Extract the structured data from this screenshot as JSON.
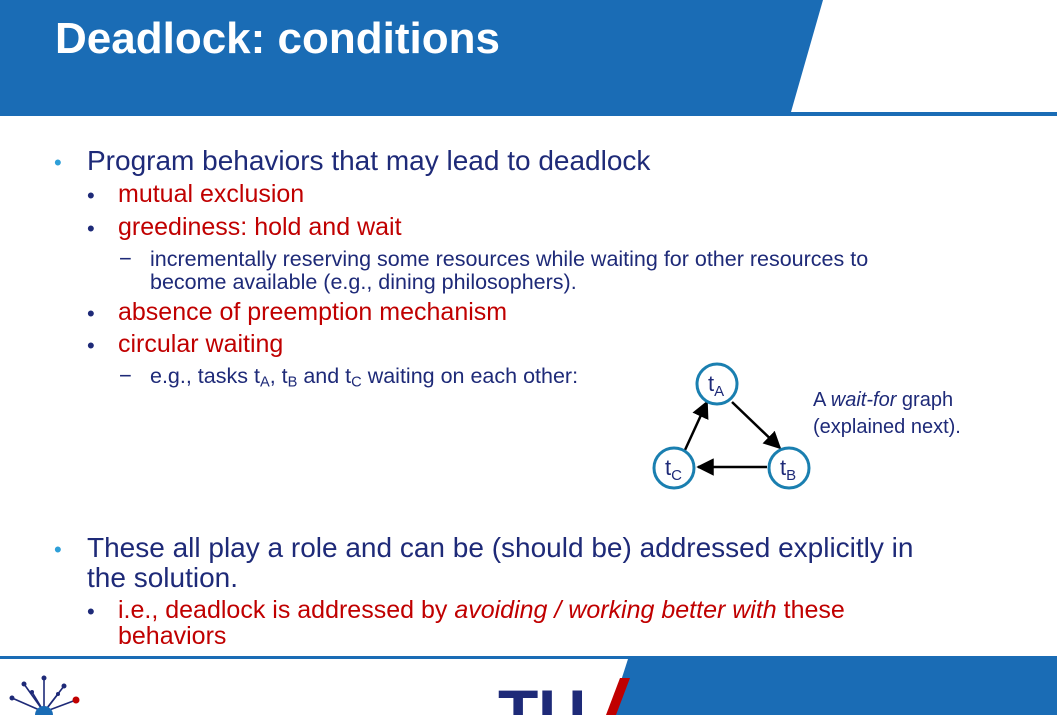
{
  "slide": {
    "title": "Deadlock: conditions",
    "bullet1": {
      "text": "Program behaviors that may lead to deadlock",
      "sub1": "mutual exclusion",
      "sub2": "greediness: hold and wait",
      "sub2_detail_line1": "incrementally reserving some resources while waiting for other resources to",
      "sub2_detail_line2": "become available (e.g., dining philosophers).",
      "sub3": "absence of preemption mechanism",
      "sub4": "circular waiting",
      "sub4_detail_prefix": "e.g., tasks t",
      "sub4_detail_a": "A",
      "sub4_detail_comma": ", t",
      "sub4_detail_b": "B",
      "sub4_detail_and": " and t",
      "sub4_detail_c": "C",
      "sub4_detail_suffix": " waiting on each other:"
    },
    "graph": {
      "node_a": {
        "label": "t",
        "sub": "A"
      },
      "node_b": {
        "label": "t",
        "sub": "B"
      },
      "node_c": {
        "label": "t",
        "sub": "C"
      },
      "caption_prefix": "A ",
      "caption_italic": "wait-for",
      "caption_suffix": " graph",
      "caption_line2": "(explained next)."
    },
    "bullet2": {
      "line1": "These all play a role and can be (should be) addressed explicitly in",
      "line2": "the solution.",
      "sub1_prefix": "i.e., deadlock is addressed by ",
      "sub1_italic": "avoiding / working better with",
      "sub1_suffix": " these",
      "sub1_line2": "behaviors"
    },
    "footer": {
      "logo_text": "TU"
    },
    "colors": {
      "brand_blue": "#1a6cb5",
      "text_navy": "#1e2a78",
      "emphasis_red": "#c00000",
      "bullet_cyan": "#2e9fd8",
      "node_stroke": "#1a7fb0"
    }
  }
}
